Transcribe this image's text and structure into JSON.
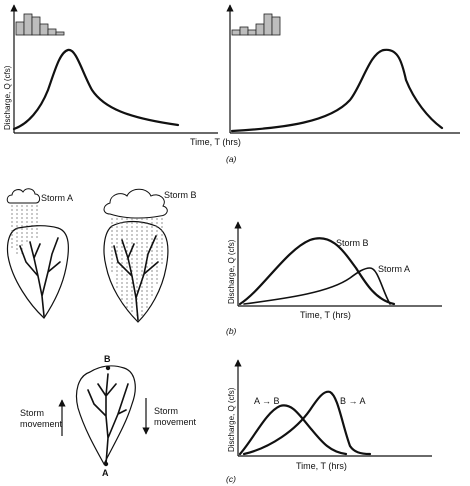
{
  "panel_a": {
    "caption": "(a)",
    "y_axis_label": "Discharge, Q (cfs)",
    "x_axis_label": "Time, T (hrs)"
  },
  "panel_b": {
    "caption": "(b)",
    "storm_a_label": "Storm A",
    "storm_b_label": "Storm B",
    "y_axis_label": "Discharge, Q (cfs)",
    "x_axis_label": "Time, T (hrs)",
    "curve_b_label": "Storm B",
    "curve_a_label": "Storm A"
  },
  "panel_c": {
    "caption": "(c)",
    "point_b_label": "B",
    "point_a_label": "A",
    "storm_movement_left": [
      "Storm",
      "movement"
    ],
    "storm_movement_right": [
      "Storm",
      "movement"
    ],
    "y_axis_label": "Discharge, Q (cfs)",
    "x_axis_label": "Time, T (hrs)",
    "curve_ab_label": "A → B",
    "curve_ba_label": "B → A"
  },
  "colors": {
    "ink": "#111111",
    "bar_fill": "#bdbdbd",
    "rain": "#666666"
  },
  "icons": [
    "cloud-icon",
    "rain-icon",
    "basin-icon",
    "arrow-up-icon",
    "arrow-down-icon"
  ]
}
